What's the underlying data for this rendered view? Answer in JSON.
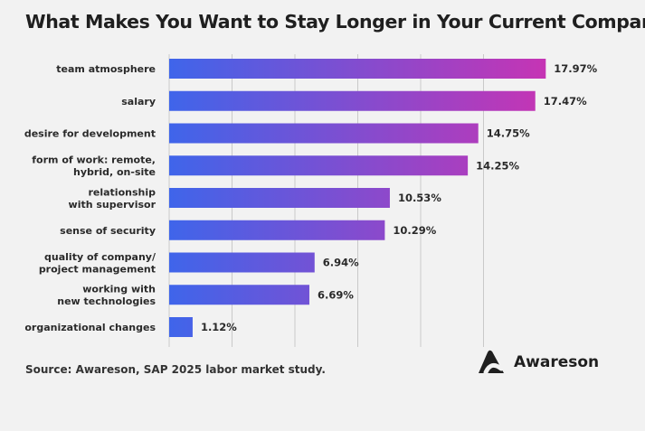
{
  "chart_data": {
    "type": "bar",
    "orientation": "horizontal",
    "title": "What Makes You Want to Stay Longer in Your Current Company?",
    "categories": [
      "team atmosphere",
      "salary",
      "desire for development",
      "form of work: remote,\nhybrid, on-site",
      "relationship\nwith supervisor",
      "sense of security",
      "quality of company/\nproject management",
      "working with\nnew technologies",
      "organizational changes"
    ],
    "values": [
      17.97,
      17.47,
      14.75,
      14.25,
      10.53,
      10.29,
      6.94,
      6.69,
      1.12
    ],
    "value_labels": [
      "17.97%",
      "17.47%",
      "14.75%",
      "14.25%",
      "10.53%",
      "10.29%",
      "6.94%",
      "6.69%",
      "1.12%"
    ],
    "xlim": [
      0,
      18
    ],
    "grid": true,
    "colors": {
      "bar_start": "#3f65ea",
      "bar_end": "#c634b4"
    }
  },
  "footer": {
    "source": "Source: Awareson, SAP 2025 labor market study.",
    "brand": "Awareson",
    "brand_icon": "awareson-logo-icon"
  }
}
